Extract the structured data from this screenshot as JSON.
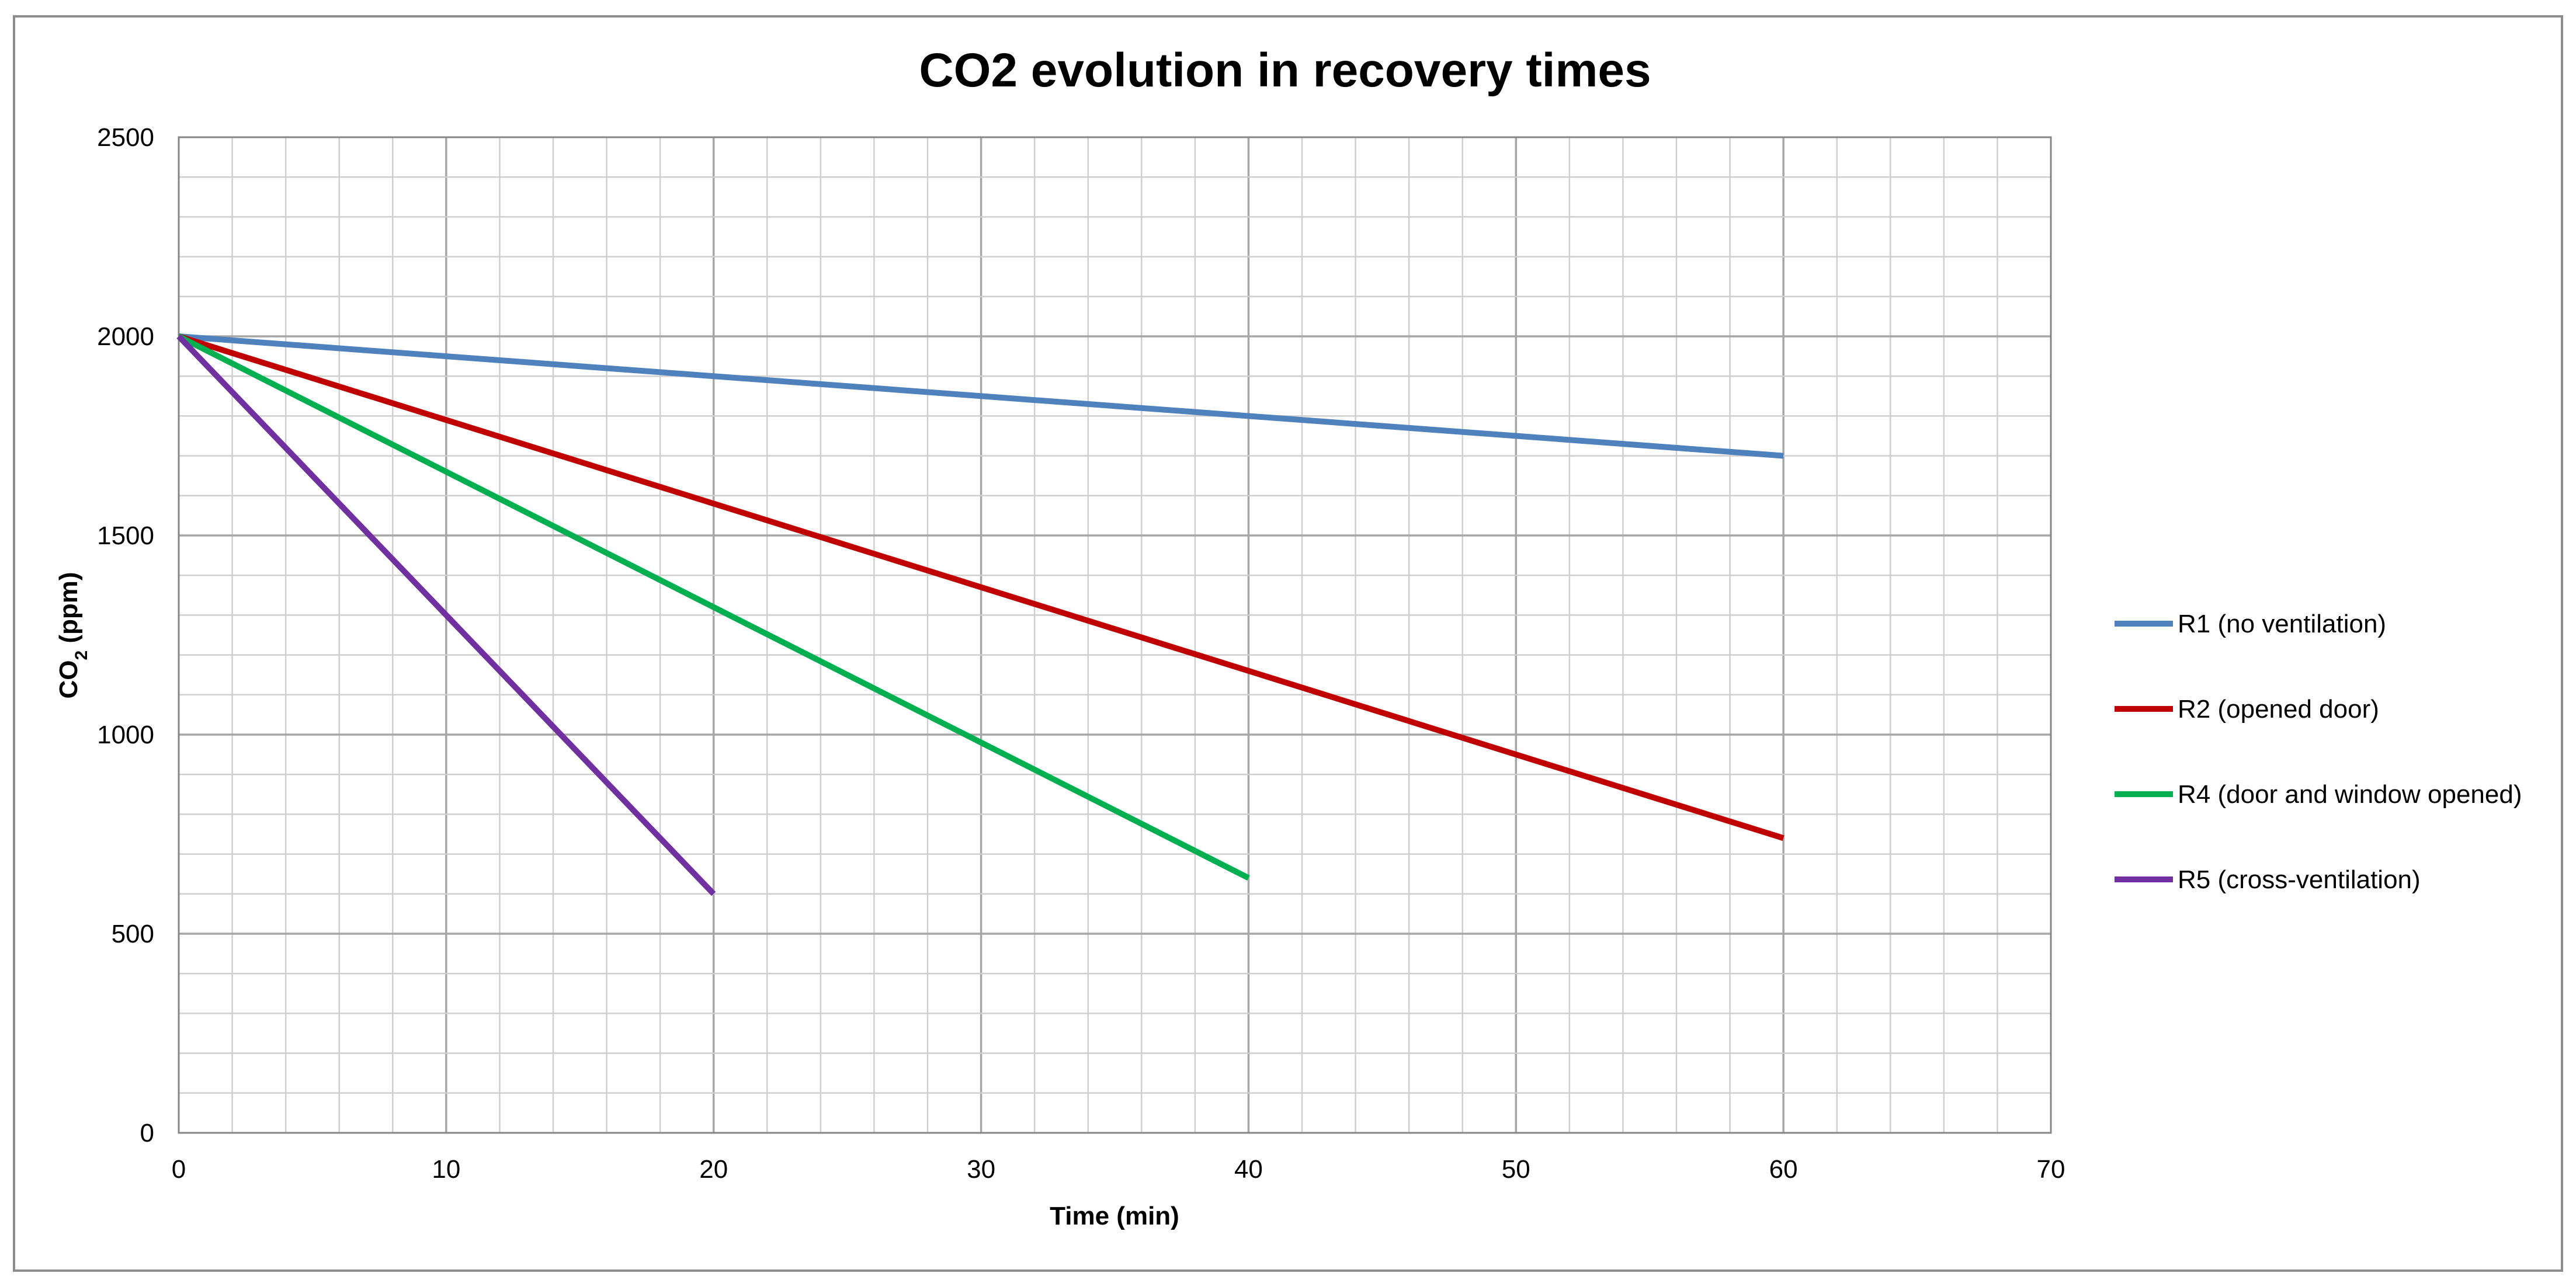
{
  "chart_data": {
    "type": "line",
    "title": "CO2 evolution in recovery times",
    "xlabel": "Time (min)",
    "ylabel": "CO₂ (ppm)",
    "ylabel_base": "CO",
    "ylabel_sub": "2",
    "ylabel_rest": " (ppm)",
    "xlim": [
      0,
      70
    ],
    "ylim": [
      0,
      2500
    ],
    "x_major_step": 10,
    "x_minor_step": 2,
    "y_major_step": 500,
    "y_minor_step": 100,
    "grid": true,
    "legend_position": "right",
    "x_ticks": [
      "0",
      "10",
      "20",
      "30",
      "40",
      "50",
      "60",
      "70"
    ],
    "y_ticks": [
      "0",
      "500",
      "1000",
      "1500",
      "2000",
      "2500"
    ],
    "series": [
      {
        "name": "R1 (no ventilation)",
        "color": "#4f81bd",
        "x": [
          0,
          60
        ],
        "y": [
          2000,
          1700
        ]
      },
      {
        "name": "R2 (opened door)",
        "color": "#c00000",
        "x": [
          0,
          60
        ],
        "y": [
          2000,
          740
        ]
      },
      {
        "name": "R4 (door and window opened)",
        "color": "#00b050",
        "x": [
          0,
          40
        ],
        "y": [
          2000,
          640
        ]
      },
      {
        "name": "R5 (cross-ventilation)",
        "color": "#7030a0",
        "x": [
          0,
          20
        ],
        "y": [
          2000,
          600
        ]
      }
    ]
  }
}
